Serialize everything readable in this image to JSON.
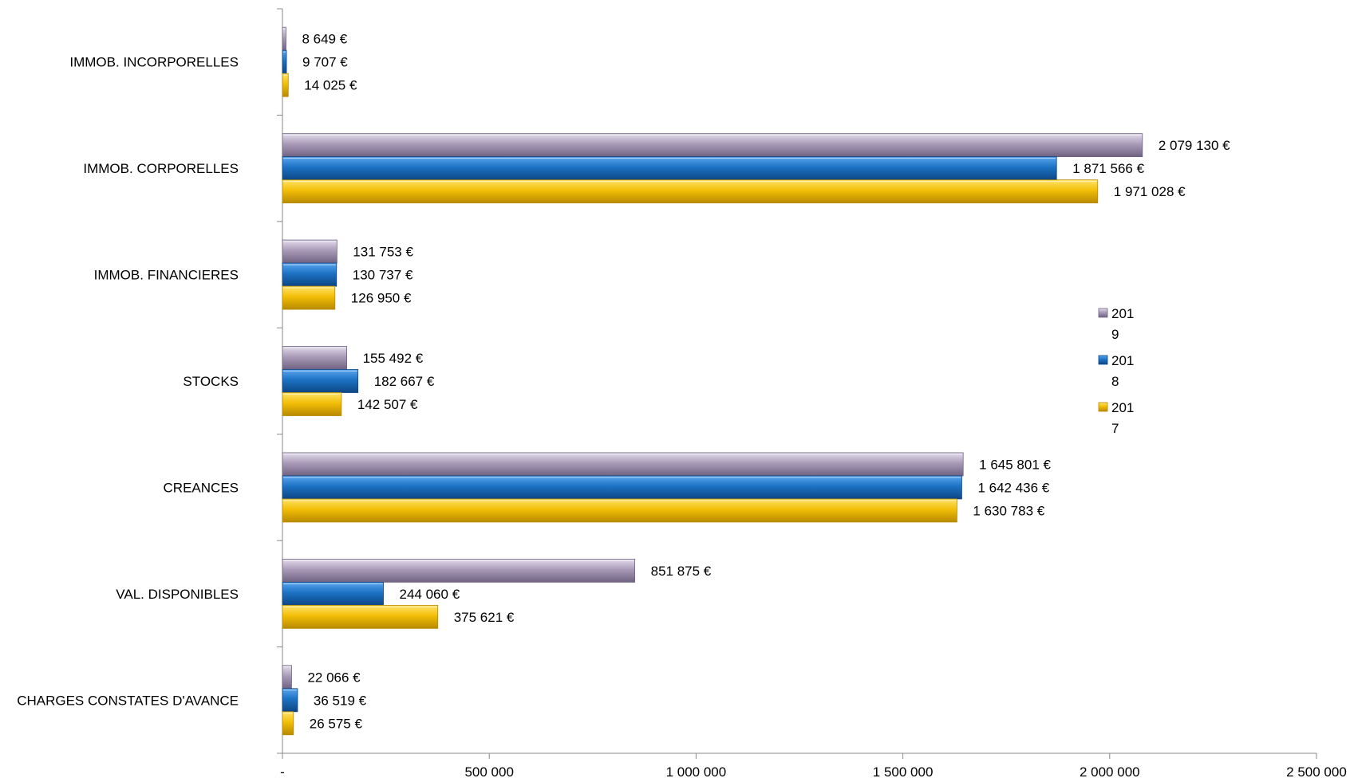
{
  "chart_data": {
    "type": "bar",
    "orientation": "horizontal",
    "title": "",
    "xlabel": "",
    "ylabel": "",
    "xlim": [
      0,
      2500000
    ],
    "ticks": [
      {
        "value": 0,
        "label": "-"
      },
      {
        "value": 500000,
        "label": "500 000"
      },
      {
        "value": 1000000,
        "label": "1 000 000"
      },
      {
        "value": 1500000,
        "label": "1 500 000"
      },
      {
        "value": 2000000,
        "label": "2 000 000"
      },
      {
        "value": 2500000,
        "label": "2 500 000"
      }
    ],
    "categories": [
      "IMMOB. INCORPORELLES",
      "IMMOB. CORPORELLES",
      "IMMOB. FINANCIERES",
      "STOCKS",
      "CREANCES",
      "VAL. DISPONIBLES",
      "CHARGES CONSTATES D'AVANCE"
    ],
    "series": [
      {
        "name": "2019",
        "legend_lines": [
          "201",
          "9"
        ],
        "color": "#A99BB8",
        "color_light": "#E4DDEC",
        "color_dark": "#6F6281",
        "values": [
          8649,
          2079130,
          131753,
          155492,
          1645801,
          851875,
          22066
        ],
        "labels": [
          "8 649 €",
          "2 079 130 €",
          "131 753 €",
          "155 492 €",
          "1 645 801 €",
          "851 875 €",
          "22 066 €"
        ]
      },
      {
        "name": "2018",
        "legend_lines": [
          "201",
          "8"
        ],
        "color": "#1C72C4",
        "color_light": "#5AA5EE",
        "color_dark": "#0D4684",
        "values": [
          9707,
          1871566,
          130737,
          182667,
          1642436,
          244060,
          36519
        ],
        "labels": [
          "9 707 €",
          "1 871 566 €",
          "130 737 €",
          "182 667 €",
          "1 642 436 €",
          "244 060 €",
          "36 519 €"
        ]
      },
      {
        "name": "2017",
        "legend_lines": [
          "201",
          "7"
        ],
        "color": "#F2BE07",
        "color_light": "#FFE36A",
        "color_dark": "#B88A00",
        "values": [
          14025,
          1971028,
          126950,
          142507,
          1630783,
          375621,
          26575
        ],
        "labels": [
          "14 025 €",
          "1 971 028 €",
          "126 950 €",
          "142 507 €",
          "1 630 783 €",
          "375 621 €",
          "26 575 €"
        ]
      }
    ],
    "legend_position": "right",
    "grid": false
  }
}
